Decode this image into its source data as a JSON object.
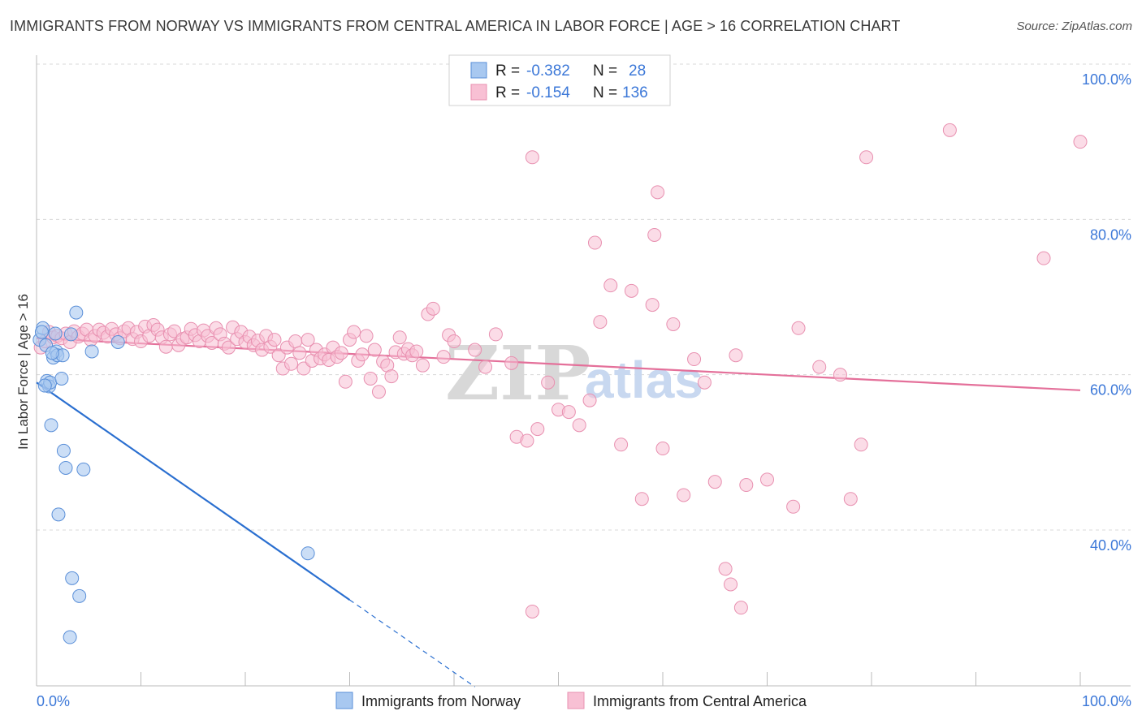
{
  "header": {
    "title": "IMMIGRANTS FROM NORWAY VS IMMIGRANTS FROM CENTRAL AMERICA IN LABOR FORCE | AGE > 16 CORRELATION CHART",
    "source": "Source: ZipAtlas.com"
  },
  "legend_top": {
    "rows": [
      {
        "r_label": "R =",
        "r_value": "-0.382",
        "n_label": "N =",
        "n_value": "28"
      },
      {
        "r_label": "R =",
        "r_value": "-0.154",
        "n_label": "N =",
        "n_value": "136"
      }
    ]
  },
  "legend_bottom": {
    "items": [
      "Immigrants from Norway",
      "Immigrants from Central America"
    ]
  },
  "watermark": {
    "zip": "ZIP",
    "atlas": "atlas"
  },
  "colors": {
    "norway_fill": "#a8c8f0",
    "norway_stroke": "#5a8fd8",
    "norway_line": "#2a6fd0",
    "central_fill": "#f8c0d4",
    "central_stroke": "#e890b0",
    "central_line": "#e4709a",
    "tick_label": "#3c78d8",
    "grid": "#d8d8d8"
  },
  "chart_data": {
    "type": "scatter",
    "title": "IMMIGRANTS FROM NORWAY VS IMMIGRANTS FROM CENTRAL AMERICA IN LABOR FORCE | AGE > 16 CORRELATION CHART",
    "xlabel": "",
    "ylabel": "In Labor Force | Age > 16",
    "xlim": [
      0,
      100
    ],
    "ylim": [
      20,
      100
    ],
    "x_tick_labels": [
      "0.0%",
      "100.0%"
    ],
    "y_ticks": [
      40,
      60,
      80,
      100
    ],
    "y_tick_labels": [
      "40.0%",
      "60.0%",
      "80.0%",
      "100.0%"
    ],
    "grid": true,
    "legend_position": "top-center",
    "series": [
      {
        "name": "Immigrants from Norway",
        "r": -0.382,
        "n": 28,
        "points": [
          [
            0.3,
            64.5
          ],
          [
            0.6,
            66.0
          ],
          [
            0.9,
            63.8
          ],
          [
            1.0,
            59.2
          ],
          [
            1.2,
            58.5
          ],
          [
            1.3,
            59.0
          ],
          [
            1.4,
            53.5
          ],
          [
            1.6,
            62.2
          ],
          [
            1.8,
            65.3
          ],
          [
            1.9,
            63.0
          ],
          [
            2.0,
            62.5
          ],
          [
            2.1,
            42.0
          ],
          [
            2.4,
            59.5
          ],
          [
            2.5,
            62.5
          ],
          [
            2.6,
            50.2
          ],
          [
            2.8,
            48.0
          ],
          [
            3.3,
            65.2
          ],
          [
            3.4,
            33.8
          ],
          [
            3.8,
            68.0
          ],
          [
            4.1,
            31.5
          ],
          [
            4.5,
            47.8
          ],
          [
            5.3,
            63.0
          ],
          [
            7.8,
            64.2
          ],
          [
            26.0,
            37.0
          ],
          [
            3.2,
            26.2
          ],
          [
            0.8,
            58.6
          ],
          [
            1.5,
            62.8
          ],
          [
            0.5,
            65.5
          ]
        ],
        "trend": {
          "x0": 0,
          "y0": 59.0,
          "x1": 30,
          "y1": 31.0,
          "dashed_to_x": 42,
          "dashed_to_y": 19.8
        }
      },
      {
        "name": "Immigrants from Central America",
        "r": -0.154,
        "n": 136,
        "points": [
          [
            0.4,
            63.5
          ],
          [
            0.8,
            64.3
          ],
          [
            1.2,
            65.5
          ],
          [
            1.6,
            64.8
          ],
          [
            2.0,
            65.0
          ],
          [
            2.4,
            64.7
          ],
          [
            2.8,
            65.3
          ],
          [
            3.2,
            64.2
          ],
          [
            3.6,
            65.6
          ],
          [
            4.0,
            64.9
          ],
          [
            4.4,
            65.3
          ],
          [
            4.8,
            65.8
          ],
          [
            5.2,
            64.5
          ],
          [
            5.6,
            65.0
          ],
          [
            6.0,
            65.8
          ],
          [
            6.4,
            65.4
          ],
          [
            6.8,
            64.9
          ],
          [
            7.2,
            65.9
          ],
          [
            7.6,
            65.2
          ],
          [
            8.0,
            64.7
          ],
          [
            8.4,
            65.6
          ],
          [
            8.8,
            66.0
          ],
          [
            9.2,
            64.6
          ],
          [
            9.6,
            65.5
          ],
          [
            10.0,
            64.3
          ],
          [
            10.4,
            66.2
          ],
          [
            10.8,
            65.0
          ],
          [
            11.2,
            66.4
          ],
          [
            11.6,
            65.8
          ],
          [
            12.0,
            64.8
          ],
          [
            12.4,
            63.6
          ],
          [
            12.8,
            65.2
          ],
          [
            13.2,
            65.6
          ],
          [
            13.6,
            63.8
          ],
          [
            14.0,
            64.6
          ],
          [
            14.4,
            64.8
          ],
          [
            14.8,
            65.9
          ],
          [
            15.2,
            65.1
          ],
          [
            15.6,
            64.3
          ],
          [
            16.0,
            65.7
          ],
          [
            16.4,
            65.0
          ],
          [
            16.8,
            64.1
          ],
          [
            17.2,
            66.0
          ],
          [
            17.6,
            65.2
          ],
          [
            18.0,
            64.0
          ],
          [
            18.4,
            63.5
          ],
          [
            18.8,
            66.1
          ],
          [
            19.2,
            64.6
          ],
          [
            19.6,
            65.5
          ],
          [
            20.0,
            64.2
          ],
          [
            20.4,
            64.9
          ],
          [
            20.8,
            63.8
          ],
          [
            21.2,
            64.4
          ],
          [
            21.6,
            63.2
          ],
          [
            22.0,
            65.0
          ],
          [
            22.4,
            63.6
          ],
          [
            22.8,
            64.5
          ],
          [
            23.2,
            62.5
          ],
          [
            23.6,
            60.8
          ],
          [
            24.0,
            63.5
          ],
          [
            24.4,
            61.4
          ],
          [
            24.8,
            64.3
          ],
          [
            25.2,
            62.8
          ],
          [
            25.6,
            60.8
          ],
          [
            26.0,
            64.5
          ],
          [
            26.4,
            61.8
          ],
          [
            26.8,
            63.2
          ],
          [
            27.2,
            62.1
          ],
          [
            27.6,
            62.6
          ],
          [
            28.0,
            61.9
          ],
          [
            28.4,
            63.5
          ],
          [
            28.8,
            62.3
          ],
          [
            29.2,
            62.8
          ],
          [
            29.6,
            59.1
          ],
          [
            30.0,
            64.5
          ],
          [
            30.4,
            65.5
          ],
          [
            30.8,
            61.8
          ],
          [
            31.2,
            62.6
          ],
          [
            31.6,
            65.0
          ],
          [
            32.0,
            59.5
          ],
          [
            32.4,
            63.2
          ],
          [
            32.8,
            57.8
          ],
          [
            33.2,
            61.7
          ],
          [
            33.6,
            61.2
          ],
          [
            34.0,
            59.8
          ],
          [
            34.4,
            62.9
          ],
          [
            34.8,
            64.8
          ],
          [
            35.2,
            62.7
          ],
          [
            35.6,
            63.3
          ],
          [
            36.0,
            62.5
          ],
          [
            36.4,
            63.0
          ],
          [
            37.0,
            61.2
          ],
          [
            37.5,
            67.8
          ],
          [
            38.0,
            68.5
          ],
          [
            39.0,
            62.3
          ],
          [
            39.5,
            65.1
          ],
          [
            40.0,
            64.3
          ],
          [
            42.0,
            63.2
          ],
          [
            43.0,
            61.0
          ],
          [
            44.0,
            65.2
          ],
          [
            45.5,
            61.5
          ],
          [
            46.0,
            52.0
          ],
          [
            47.0,
            51.5
          ],
          [
            48.0,
            53.0
          ],
          [
            49.0,
            59.0
          ],
          [
            50.0,
            55.5
          ],
          [
            51.0,
            55.2
          ],
          [
            52.0,
            53.5
          ],
          [
            53.0,
            56.7
          ],
          [
            54.0,
            66.8
          ],
          [
            55.0,
            71.5
          ],
          [
            56.0,
            51.0
          ],
          [
            57.0,
            70.8
          ],
          [
            58.0,
            44.0
          ],
          [
            59.0,
            69.0
          ],
          [
            60.0,
            50.5
          ],
          [
            61.0,
            66.5
          ],
          [
            62.0,
            44.5
          ],
          [
            63.0,
            62.0
          ],
          [
            64.0,
            59.0
          ],
          [
            65.0,
            46.2
          ],
          [
            66.0,
            35.0
          ],
          [
            67.0,
            62.5
          ],
          [
            68.0,
            45.8
          ],
          [
            70.0,
            46.5
          ],
          [
            72.5,
            43.0
          ],
          [
            73.0,
            66.0
          ],
          [
            75.0,
            61.0
          ],
          [
            77.0,
            60.0
          ],
          [
            78.0,
            44.0
          ],
          [
            79.0,
            51.0
          ],
          [
            47.5,
            29.5
          ],
          [
            66.5,
            33.0
          ],
          [
            67.5,
            30.0
          ],
          [
            47.5,
            88.0
          ],
          [
            59.5,
            83.5
          ],
          [
            53.5,
            77.0
          ],
          [
            59.2,
            78.0
          ],
          [
            79.5,
            88.0
          ],
          [
            87.5,
            91.5
          ],
          [
            96.5,
            75.0
          ],
          [
            100.0,
            90.0
          ]
        ],
        "trend": {
          "x0": 0,
          "y0": 64.7,
          "x1": 100,
          "y1": 58.0
        }
      }
    ]
  }
}
